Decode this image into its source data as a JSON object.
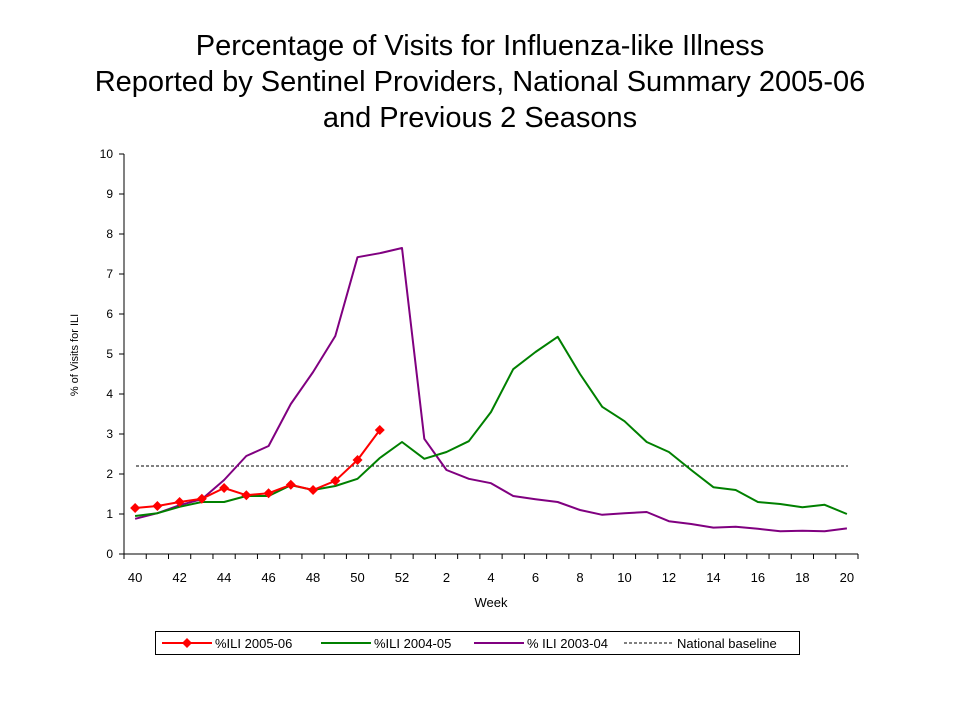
{
  "title_lines": [
    "Percentage of Visits for Influenza-like Illness",
    "Reported by Sentinel Providers, National Summary 2005-06",
    "and Previous 2 Seasons"
  ],
  "chart_data": {
    "type": "line",
    "title": "Percentage of Visits for Influenza-like Illness Reported by Sentinel Providers, National Summary 2005-06 and Previous 2 Seasons",
    "xlabel": "Week",
    "ylabel": "% of Visits for ILI",
    "ylim": [
      0,
      10
    ],
    "yticks": [
      0,
      1,
      2,
      3,
      4,
      5,
      6,
      7,
      8,
      9,
      10
    ],
    "weeks": [
      40,
      41,
      42,
      43,
      44,
      45,
      46,
      47,
      48,
      49,
      50,
      51,
      52,
      1,
      2,
      3,
      4,
      5,
      6,
      7,
      8,
      9,
      10,
      11,
      12,
      13,
      14,
      15,
      16,
      17,
      18,
      19,
      20
    ],
    "x_tick_labels": [
      "40",
      "42",
      "44",
      "46",
      "48",
      "50",
      "52",
      "2",
      "4",
      "6",
      "8",
      "10",
      "12",
      "14",
      "16",
      "18",
      "20"
    ],
    "grid": false,
    "legend_position": "bottom",
    "baseline": {
      "name": "National baseline",
      "value": 2.2,
      "color": "#000000"
    },
    "series": [
      {
        "name": "%ILI 2005-06",
        "color": "#ff0000",
        "marker": "diamond",
        "values": [
          1.15,
          1.2,
          1.3,
          1.38,
          1.65,
          1.47,
          1.52,
          1.73,
          1.6,
          1.83,
          2.35,
          3.1
        ]
      },
      {
        "name": "%ILI 2004-05",
        "color": "#008000",
        "marker": "none",
        "values": [
          0.95,
          1.02,
          1.18,
          1.3,
          1.3,
          1.45,
          1.45,
          1.72,
          1.6,
          1.7,
          1.88,
          2.4,
          2.8,
          2.38,
          2.55,
          2.82,
          3.55,
          4.62,
          5.05,
          5.43,
          4.5,
          3.68,
          3.32,
          2.8,
          2.55,
          2.1,
          1.67,
          1.6,
          1.3,
          1.25,
          1.17,
          1.23,
          1.0
        ]
      },
      {
        "name": "% ILI 2003-04",
        "color": "#800080",
        "marker": "none",
        "values": [
          0.88,
          1.02,
          1.22,
          1.37,
          1.85,
          2.45,
          2.7,
          3.75,
          4.55,
          5.45,
          7.42,
          7.52,
          7.65,
          2.88,
          2.1,
          1.88,
          1.77,
          1.45,
          1.37,
          1.3,
          1.1,
          0.98,
          1.02,
          1.05,
          0.82,
          0.75,
          0.66,
          0.68,
          0.63,
          0.57,
          0.58,
          0.57,
          0.64
        ]
      }
    ]
  }
}
